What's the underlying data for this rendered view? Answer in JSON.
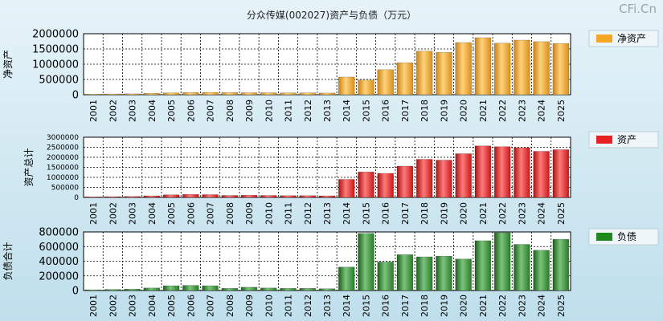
{
  "page": {
    "title": "分众传媒(002027)资产与负债（万元）",
    "watermark": "CFi.Cn"
  },
  "colors": {
    "net_assets": "#f5a623",
    "total_assets": "#e82020",
    "total_liabilities": "#1e8a1e",
    "plot_bg": "#ffffff",
    "grid": "#000000"
  },
  "chart_data": [
    {
      "type": "bar",
      "title": "",
      "ylabel": "净资产",
      "legend": "净资产",
      "legend_position": "right",
      "categories": [
        "2001",
        "2002",
        "2003",
        "2004",
        "2005",
        "2006",
        "2007",
        "2008",
        "2009",
        "2010",
        "2011",
        "2012",
        "2013",
        "2014",
        "2015",
        "2016",
        "2017",
        "2018",
        "2019",
        "2020",
        "2021",
        "2022",
        "2023",
        "2024",
        "2025"
      ],
      "values": [
        20000,
        25000,
        30000,
        45000,
        60000,
        70000,
        75000,
        70000,
        65000,
        65000,
        60000,
        60000,
        55000,
        580000,
        480000,
        820000,
        1050000,
        1430000,
        1390000,
        1710000,
        1870000,
        1690000,
        1790000,
        1740000,
        1680000
      ],
      "ylim": [
        0,
        2000000
      ],
      "yticks": [
        "0",
        "500000",
        "1000000",
        "1500000",
        "2000000"
      ],
      "grid": true
    },
    {
      "type": "bar",
      "title": "",
      "ylabel": "资产总计",
      "legend": "资产",
      "legend_position": "right",
      "categories": [
        "2001",
        "2002",
        "2003",
        "2004",
        "2005",
        "2006",
        "2007",
        "2008",
        "2009",
        "2010",
        "2011",
        "2012",
        "2013",
        "2014",
        "2015",
        "2016",
        "2017",
        "2018",
        "2019",
        "2020",
        "2021",
        "2022",
        "2023",
        "2024",
        "2025"
      ],
      "values": [
        30000,
        40000,
        50000,
        80000,
        130000,
        150000,
        140000,
        100000,
        110000,
        100000,
        90000,
        90000,
        80000,
        900000,
        1270000,
        1200000,
        1560000,
        1900000,
        1860000,
        2180000,
        2570000,
        2530000,
        2480000,
        2300000,
        2380000
      ],
      "ylim": [
        0,
        3000000
      ],
      "yticks": [
        "0",
        "500000",
        "1000000",
        "1500000",
        "2000000",
        "2500000",
        "3000000"
      ],
      "grid": true
    },
    {
      "type": "bar",
      "title": "",
      "ylabel": "负债合计",
      "legend": "负债",
      "legend_position": "right",
      "categories": [
        "2001",
        "2002",
        "2003",
        "2004",
        "2005",
        "2006",
        "2007",
        "2008",
        "2009",
        "2010",
        "2011",
        "2012",
        "2013",
        "2014",
        "2015",
        "2016",
        "2017",
        "2018",
        "2019",
        "2020",
        "2021",
        "2022",
        "2023",
        "2024",
        "2025"
      ],
      "values": [
        10000,
        15000,
        20000,
        35000,
        65000,
        70000,
        65000,
        30000,
        45000,
        35000,
        30000,
        30000,
        25000,
        320000,
        780000,
        390000,
        490000,
        460000,
        470000,
        430000,
        680000,
        790000,
        630000,
        550000,
        700000
      ],
      "ylim": [
        0,
        800000
      ],
      "yticks": [
        "0",
        "200000",
        "400000",
        "600000",
        "800000"
      ],
      "grid": true
    }
  ]
}
